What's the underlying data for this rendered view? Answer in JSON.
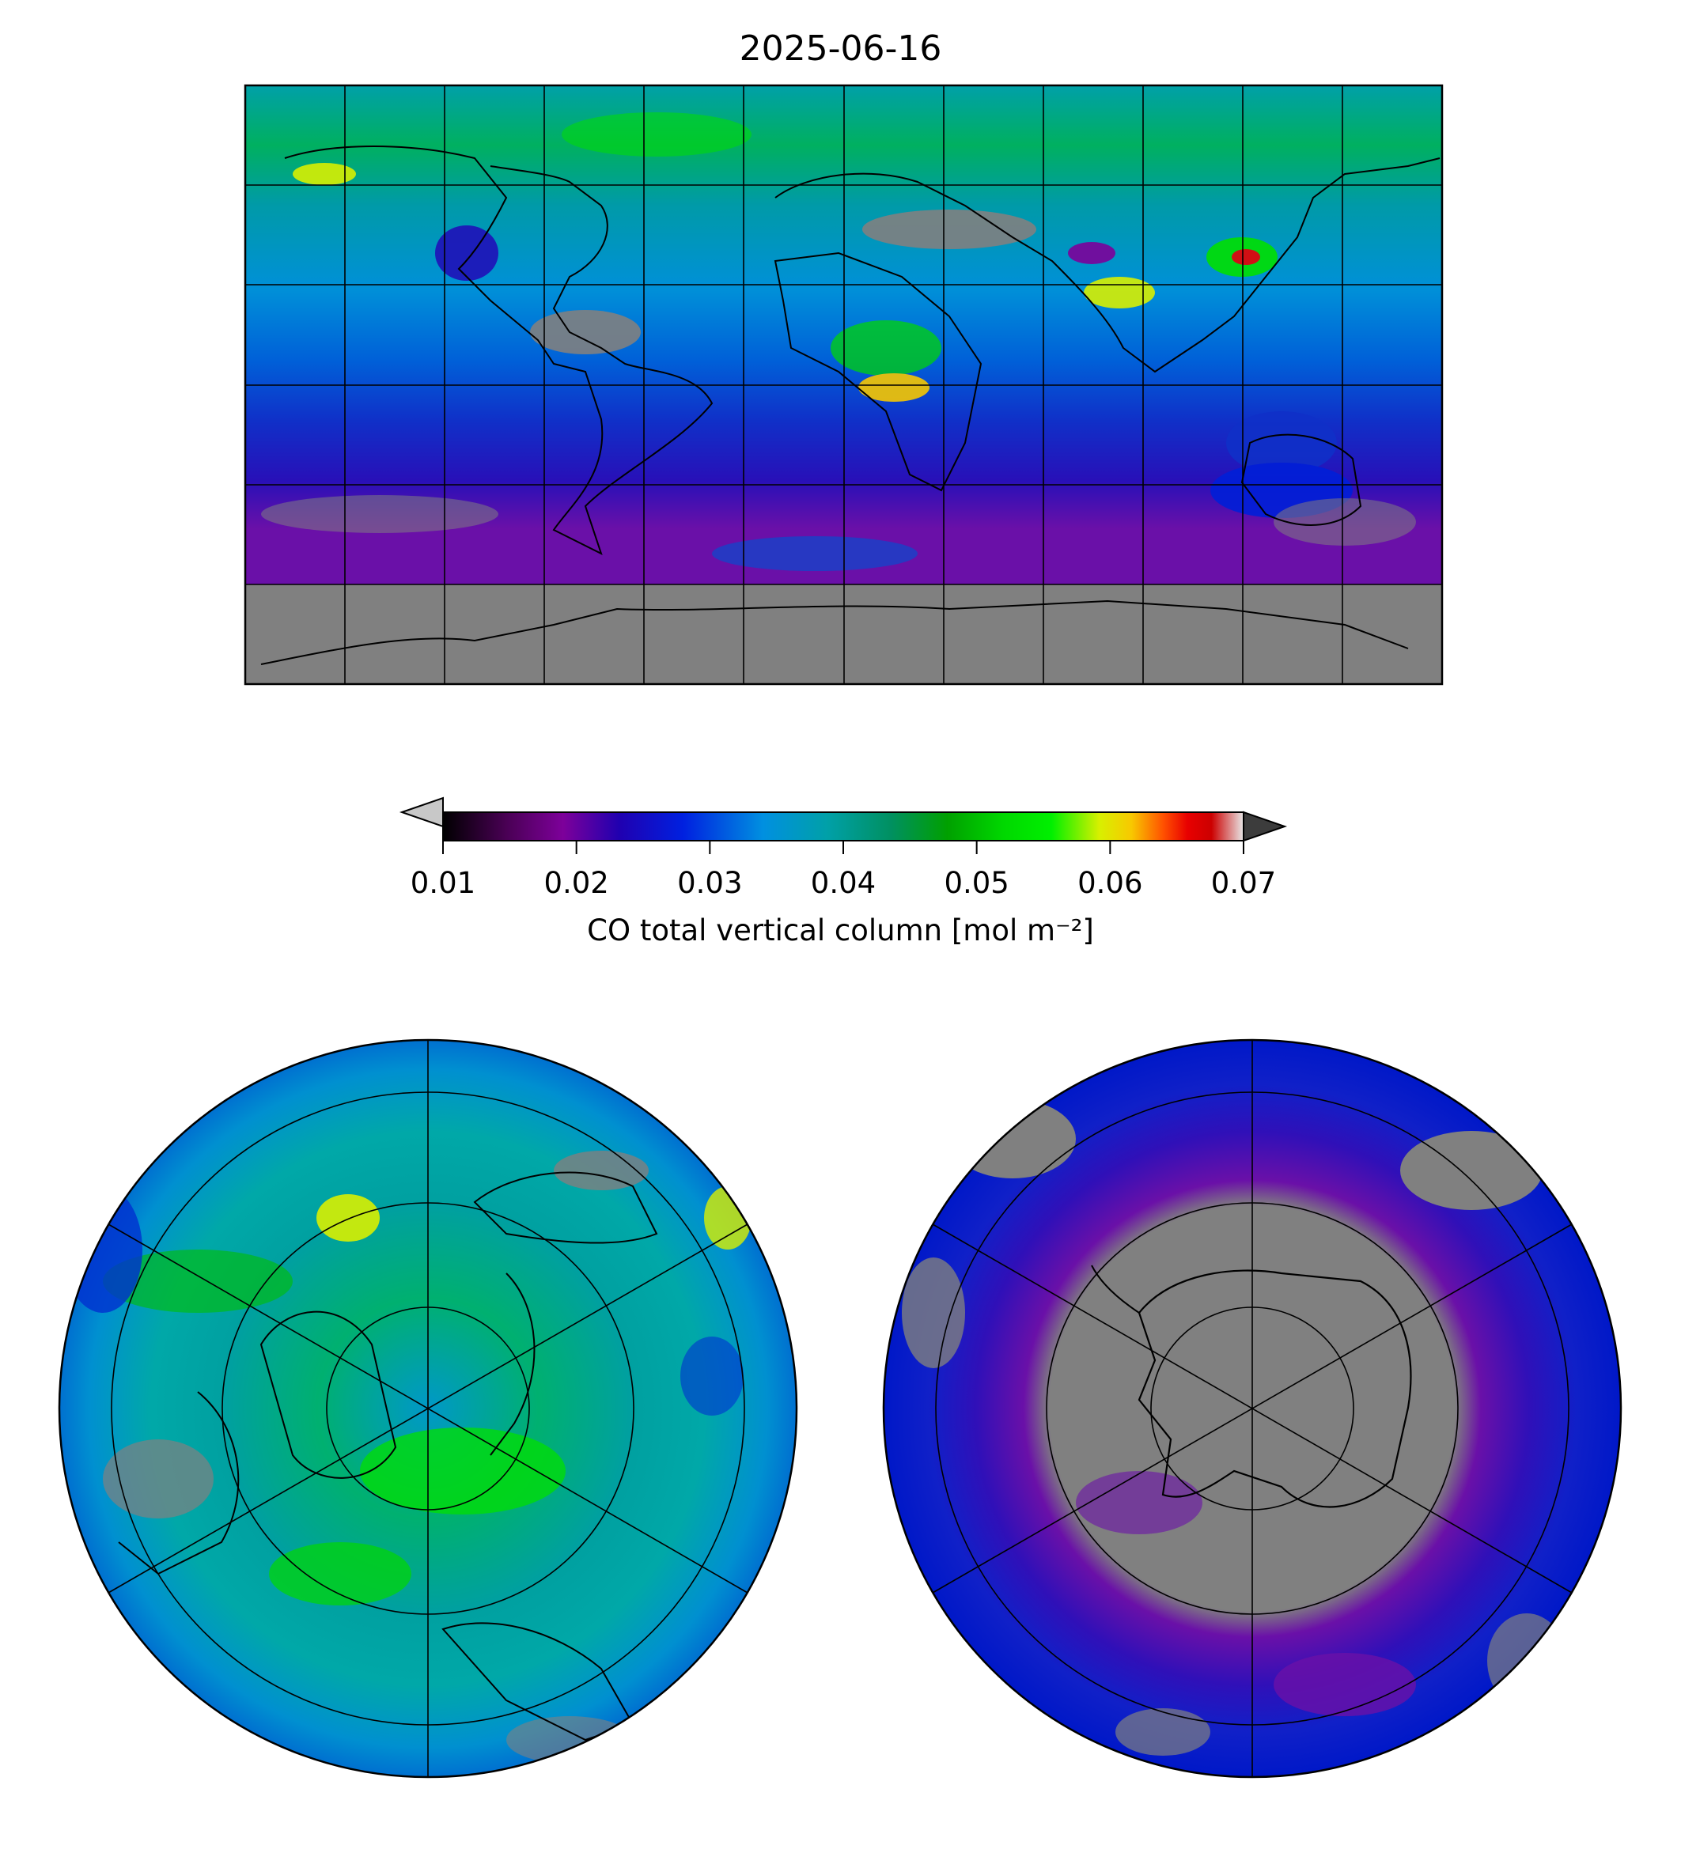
{
  "title": "2025-06-16",
  "colorbar": {
    "label": "CO total vertical column [mol m⁻²]",
    "ticks": [
      "0.01",
      "0.02",
      "0.03",
      "0.04",
      "0.05",
      "0.06",
      "0.07"
    ],
    "vmin": 0.01,
    "vmax": 0.07,
    "under_color": "#c8c8c8",
    "over_color": "#3c3c3c",
    "missing_color": "#808080"
  },
  "maps": [
    {
      "projection": "equirectangular"
    },
    {
      "projection": "north-polar-stereographic"
    },
    {
      "projection": "south-polar-stereographic"
    }
  ]
}
